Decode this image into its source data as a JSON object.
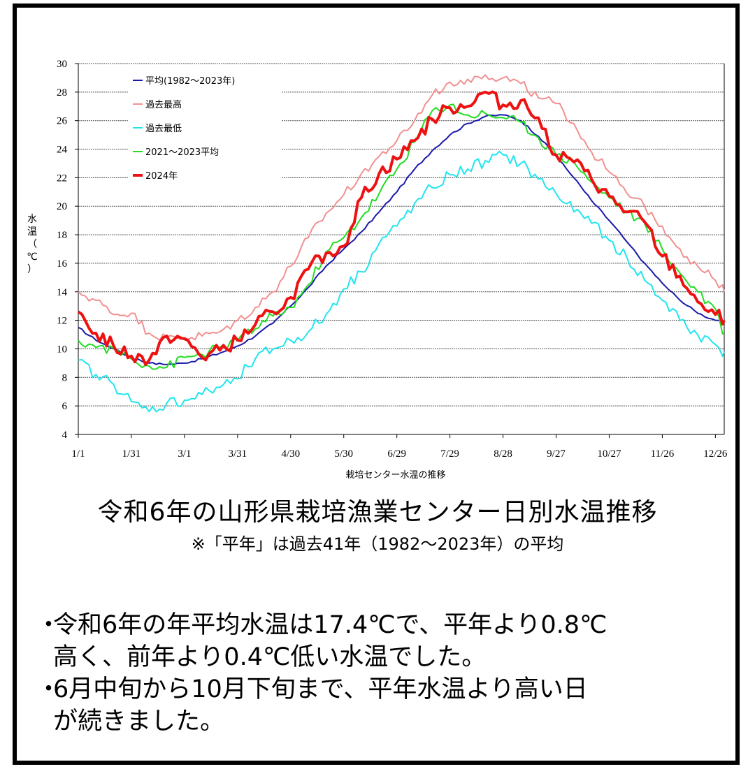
{
  "chart_data": {
    "type": "line",
    "ylabel": "水温（℃）",
    "xlabel": "栽培センター水温の推移",
    "ylim": [
      4,
      30
    ],
    "yticks": [
      4,
      6,
      8,
      10,
      12,
      14,
      16,
      18,
      20,
      22,
      24,
      26,
      28,
      30
    ],
    "xlim_day": [
      0,
      365
    ],
    "xticks": [
      {
        "label": "1/1",
        "day": 0
      },
      {
        "label": "1/31",
        "day": 30
      },
      {
        "label": "3/1",
        "day": 60
      },
      {
        "label": "3/31",
        "day": 90
      },
      {
        "label": "4/30",
        "day": 120
      },
      {
        "label": "5/30",
        "day": 150
      },
      {
        "label": "6/29",
        "day": 180
      },
      {
        "label": "7/29",
        "day": 210
      },
      {
        "label": "8/28",
        "day": 240
      },
      {
        "label": "9/27",
        "day": 270
      },
      {
        "label": "10/27",
        "day": 300
      },
      {
        "label": "11/26",
        "day": 330
      },
      {
        "label": "12/26",
        "day": 360
      }
    ],
    "grid": true,
    "legend_position": "top-left",
    "series": [
      {
        "name": "平均(1982～2023年)",
        "color": "#1a1aaa",
        "width": 2,
        "x": [
          0,
          10,
          20,
          30,
          40,
          50,
          60,
          70,
          80,
          90,
          100,
          110,
          120,
          130,
          140,
          150,
          160,
          170,
          180,
          190,
          200,
          210,
          220,
          230,
          240,
          250,
          260,
          270,
          280,
          290,
          300,
          310,
          320,
          330,
          340,
          350,
          360,
          365
        ],
        "values": [
          11.5,
          10.6,
          10.0,
          9.4,
          9.0,
          8.9,
          9.0,
          9.3,
          9.7,
          10.2,
          10.9,
          11.8,
          13.0,
          14.3,
          15.8,
          17.0,
          18.2,
          19.6,
          21.0,
          22.6,
          23.9,
          25.0,
          25.8,
          26.3,
          26.4,
          26.0,
          24.9,
          23.5,
          22.0,
          20.4,
          19.0,
          17.5,
          16.0,
          14.6,
          13.4,
          12.5,
          12.0,
          11.8
        ]
      },
      {
        "name": "過去最高",
        "color": "#f29090",
        "width": 2,
        "x": [
          0,
          10,
          20,
          30,
          40,
          50,
          60,
          70,
          80,
          90,
          100,
          110,
          120,
          130,
          140,
          150,
          160,
          170,
          180,
          190,
          200,
          210,
          220,
          230,
          240,
          250,
          260,
          270,
          280,
          290,
          300,
          310,
          320,
          330,
          340,
          350,
          360,
          365
        ],
        "values": [
          14.0,
          13.4,
          12.4,
          12.5,
          11.1,
          10.8,
          10.8,
          10.9,
          11.2,
          12.0,
          12.9,
          14.0,
          15.8,
          17.8,
          19.5,
          20.8,
          22.3,
          23.5,
          24.6,
          26.0,
          27.8,
          28.7,
          28.9,
          29.2,
          29.0,
          28.6,
          27.6,
          27.2,
          25.8,
          23.8,
          22.4,
          20.9,
          20.0,
          18.6,
          17.0,
          15.8,
          14.8,
          14.0
        ]
      },
      {
        "name": "過去最低",
        "color": "#22e5ee",
        "width": 2,
        "x": [
          0,
          10,
          20,
          30,
          40,
          50,
          60,
          70,
          80,
          90,
          100,
          110,
          120,
          130,
          140,
          150,
          160,
          170,
          180,
          190,
          200,
          210,
          220,
          230,
          240,
          250,
          260,
          270,
          280,
          290,
          300,
          310,
          320,
          330,
          340,
          350,
          360,
          365
        ],
        "values": [
          9.2,
          8.2,
          7.5,
          6.3,
          5.6,
          6.2,
          6.4,
          6.8,
          7.3,
          7.9,
          9.3,
          10.0,
          10.6,
          11.2,
          12.4,
          14.2,
          15.4,
          17.4,
          18.6,
          20.2,
          21.3,
          22.2,
          22.6,
          23.2,
          23.6,
          23.0,
          21.9,
          20.9,
          19.6,
          18.8,
          17.6,
          16.4,
          14.8,
          13.4,
          12.0,
          11.0,
          10.3,
          9.8
        ]
      },
      {
        "name": "2021～2023平均",
        "color": "#22dd22",
        "width": 2,
        "x": [
          0,
          10,
          20,
          30,
          40,
          50,
          60,
          70,
          80,
          90,
          100,
          110,
          120,
          130,
          140,
          150,
          160,
          170,
          180,
          190,
          200,
          210,
          220,
          230,
          240,
          250,
          260,
          270,
          280,
          290,
          300,
          310,
          320,
          330,
          340,
          350,
          360,
          365
        ],
        "values": [
          10.6,
          10.1,
          10.0,
          9.3,
          8.8,
          8.7,
          9.4,
          9.6,
          10.1,
          10.6,
          11.4,
          12.3,
          12.9,
          14.5,
          16.8,
          17.8,
          19.2,
          20.9,
          22.6,
          24.5,
          26.7,
          27.1,
          26.4,
          26.5,
          26.2,
          25.9,
          24.8,
          23.6,
          23.1,
          21.7,
          20.6,
          19.6,
          18.8,
          17.0,
          15.3,
          14.0,
          12.8,
          11.0
        ]
      },
      {
        "name": "2024年",
        "color": "#ee1111",
        "width": 4,
        "x": [
          0,
          10,
          20,
          30,
          40,
          50,
          60,
          70,
          80,
          90,
          100,
          110,
          120,
          130,
          140,
          150,
          160,
          170,
          180,
          190,
          200,
          210,
          220,
          230,
          240,
          250,
          260,
          270,
          280,
          290,
          300,
          310,
          320,
          330,
          340,
          350,
          360,
          365
        ],
        "values": [
          12.6,
          11.1,
          10.2,
          9.5,
          9.2,
          10.9,
          10.7,
          9.4,
          9.9,
          10.6,
          11.7,
          12.6,
          13.6,
          15.6,
          16.7,
          17.2,
          20.6,
          22.3,
          23.3,
          24.6,
          26.1,
          26.9,
          27.0,
          28.0,
          27.1,
          27.4,
          26.2,
          23.6,
          23.1,
          21.9,
          20.7,
          19.6,
          18.9,
          16.5,
          15.1,
          13.3,
          12.4,
          12.0
        ]
      }
    ]
  },
  "text": {
    "title": "令和6年の山形県栽培漁業センター日別水温推移",
    "subtitle": "※「平年」は過去41年（1982～2023年）の平均",
    "bullet1_line1": "令和6年の年平均水温は17.4℃で、平年より0.8℃",
    "bullet1_line2": "高く、前年より0.4℃低い水温でした。",
    "bullet2_line1": "6月中旬から10月下旬まで、平年水温より高い日",
    "bullet2_line2": "が続きました。",
    "bullet_mark": "・"
  }
}
